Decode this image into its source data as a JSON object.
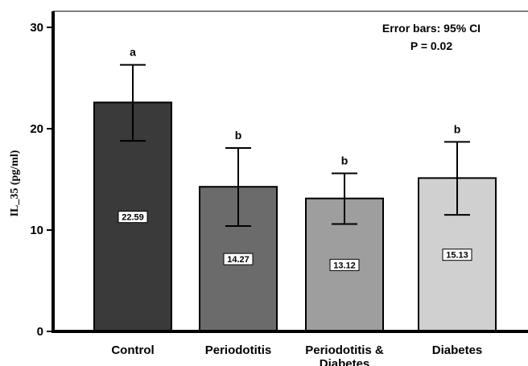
{
  "chart_data": {
    "type": "bar",
    "ylabel": "IL_35 (pg/ml)",
    "xlabel": "",
    "ylim": [
      0,
      30
    ],
    "yticks": [
      0,
      10,
      20,
      30
    ],
    "grid": false,
    "categories": [
      [
        "Control"
      ],
      [
        "Periodotitis"
      ],
      [
        "Periodotitis &",
        "Diabetes"
      ],
      [
        "Diabetes"
      ]
    ],
    "values": [
      22.59,
      14.27,
      13.12,
      15.13
    ],
    "value_labels": [
      "22.59",
      "14.27",
      "13.12",
      "15.13"
    ],
    "ci_low": [
      18.8,
      10.4,
      10.6,
      11.5
    ],
    "ci_high": [
      26.3,
      18.1,
      15.6,
      18.7
    ],
    "significance_letters": [
      "a",
      "b",
      "b",
      "b"
    ],
    "bar_colors": [
      "#3a3a3a",
      "#6b6b6b",
      "#9e9e9e",
      "#d0d0d0"
    ],
    "annotations": [
      "Error bars: 95% CI",
      "P = 0.02"
    ]
  }
}
